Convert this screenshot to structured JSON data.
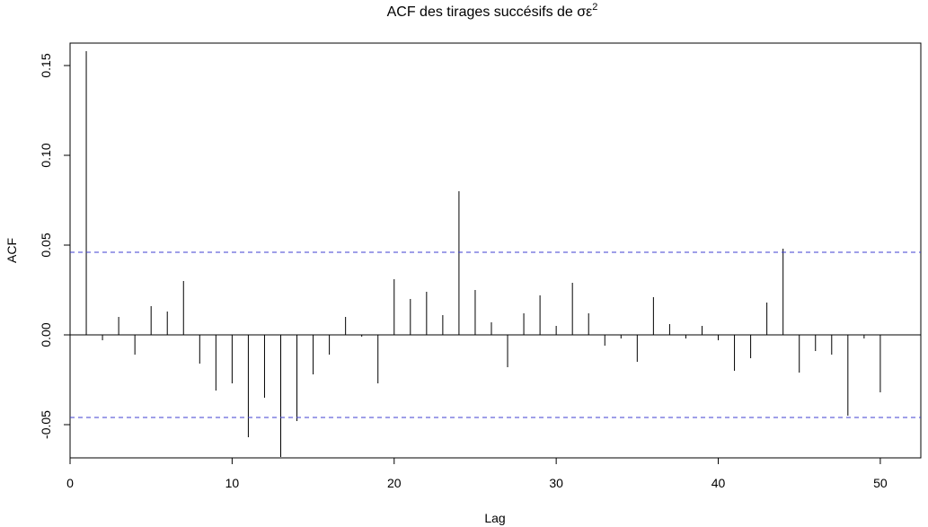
{
  "chart_data": {
    "type": "bar",
    "title_main": "ACF des tirages succésifs de σε",
    "title_superscript": "2",
    "xlabel": "Lag",
    "ylabel": "ACF",
    "xlim": [
      0,
      52.5
    ],
    "ylim": [
      -0.0685,
      0.1625
    ],
    "x_ticks": [
      0,
      10,
      20,
      30,
      40,
      50
    ],
    "y_ticks": [
      -0.05,
      0.0,
      0.05,
      0.1,
      0.15
    ],
    "y_tick_labels": [
      "-0.05",
      "0.00",
      "0.05",
      "0.10",
      "0.15"
    ],
    "confidence_limit": 0.046,
    "confidence_color": "#3f3fd1",
    "grid": false,
    "series": [
      {
        "lags": [
          1,
          2,
          3,
          4,
          5,
          6,
          7,
          8,
          9,
          10,
          11,
          12,
          13,
          14,
          15,
          16,
          17,
          18,
          19,
          20,
          21,
          22,
          23,
          24,
          25,
          26,
          27,
          28,
          29,
          30,
          31,
          32,
          33,
          34,
          35,
          36,
          37,
          38,
          39,
          40,
          41,
          42,
          43,
          44,
          45,
          46,
          47,
          48,
          49,
          50
        ],
        "values": [
          0.158,
          -0.003,
          0.01,
          -0.011,
          0.016,
          0.013,
          0.03,
          -0.016,
          -0.031,
          -0.027,
          -0.057,
          -0.035,
          -0.068,
          -0.048,
          -0.022,
          -0.011,
          0.01,
          -0.001,
          -0.027,
          0.031,
          0.02,
          0.024,
          0.011,
          0.08,
          0.025,
          0.007,
          -0.018,
          0.012,
          0.022,
          0.005,
          0.029,
          0.012,
          -0.006,
          -0.002,
          -0.015,
          0.021,
          0.006,
          -0.002,
          0.005,
          -0.003,
          -0.02,
          -0.013,
          0.018,
          0.048,
          -0.021,
          -0.009,
          -0.011,
          -0.045,
          -0.002,
          -0.032
        ]
      }
    ]
  }
}
